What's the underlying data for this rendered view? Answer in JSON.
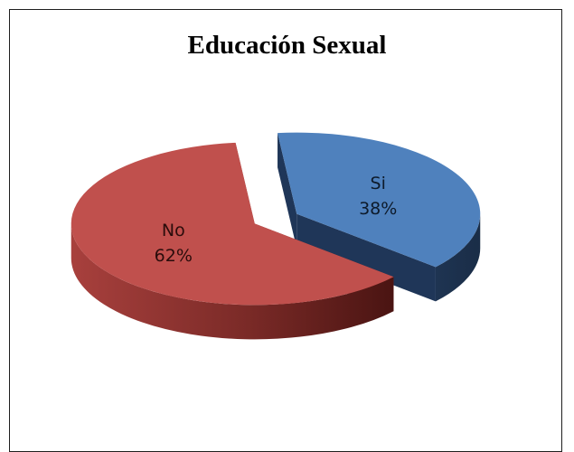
{
  "chart_data": {
    "type": "pie",
    "title": "Educación Sexual",
    "style": "3d-exploded",
    "slices": [
      {
        "label": "Si",
        "value": 38,
        "value_label": "38%",
        "color": "#4f81bd",
        "side_color": "#1f3658",
        "text_color": "#0d1a2a"
      },
      {
        "label": "No",
        "value": 62,
        "value_label": "62%",
        "color": "#c0504d",
        "side_color": "#8a2f2c",
        "text_color": "#2a0c0b"
      }
    ]
  }
}
